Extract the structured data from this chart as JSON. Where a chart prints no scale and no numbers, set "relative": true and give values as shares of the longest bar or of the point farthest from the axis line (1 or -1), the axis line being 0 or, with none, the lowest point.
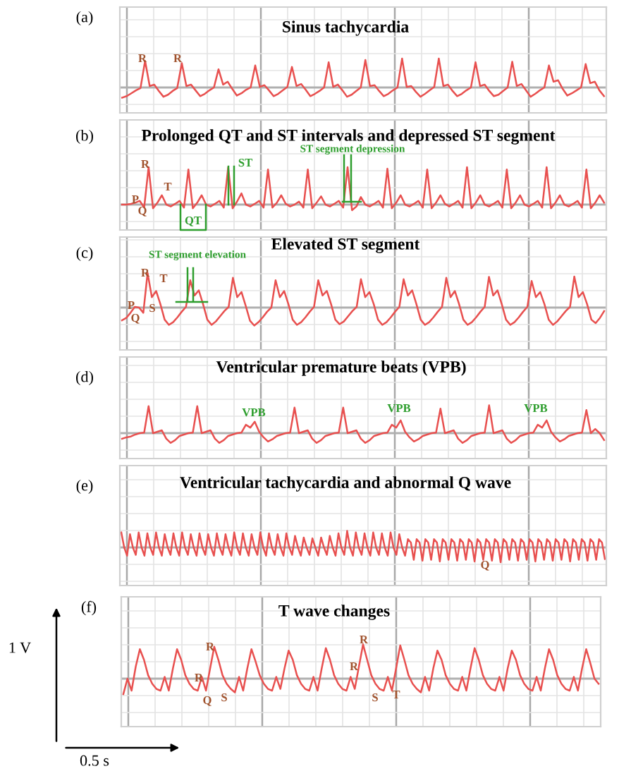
{
  "chart_data": [
    {
      "type": "line",
      "title": "Sinus tachycardia",
      "relative": true,
      "grid": true,
      "tick_labels": false,
      "annotations": [
        "(a)",
        "R",
        "R"
      ],
      "categories": [
        null,
        null,
        null,
        null,
        null,
        null,
        null,
        null,
        null,
        null,
        null,
        null,
        null,
        null,
        null,
        null,
        null,
        null,
        null,
        null,
        null,
        null,
        null,
        null,
        null,
        null,
        null,
        null,
        null,
        null,
        null,
        null,
        null,
        null,
        null,
        null,
        null,
        null,
        null,
        null,
        null,
        null,
        null,
        null,
        null,
        null,
        null,
        null,
        null,
        null,
        null,
        null,
        null,
        null,
        null,
        null,
        null,
        null,
        null,
        null,
        null,
        null,
        null,
        null,
        null,
        null,
        null,
        null,
        null,
        null,
        null,
        null,
        null,
        null,
        null,
        null,
        null,
        null,
        null,
        null,
        null,
        null,
        null,
        null,
        null,
        null,
        null,
        null,
        null,
        null,
        null,
        null,
        null,
        null,
        null,
        null,
        null,
        null,
        null,
        null,
        null,
        null,
        null,
        null,
        null,
        null
      ],
      "series": [
        {
          "color": "#e8504f",
          "values": [
            -0.35,
            -0.3,
            -0.2,
            -0.1,
            -0.02,
            0.92,
            0.05,
            0.1,
            -0.12,
            -0.32,
            -0.25,
            -0.12,
            -0.02,
            0.84,
            0.05,
            0.1,
            -0.1,
            -0.3,
            -0.22,
            -0.1,
            0.0,
            0.63,
            0.1,
            0.2,
            -0.05,
            -0.28,
            -0.2,
            -0.08,
            0.0,
            0.76,
            0.02,
            0.08,
            -0.1,
            -0.3,
            -0.22,
            -0.1,
            0.02,
            0.71,
            0.05,
            0.12,
            -0.08,
            -0.3,
            -0.22,
            -0.12,
            0.0,
            0.87,
            0.02,
            0.1,
            -0.1,
            -0.32,
            -0.25,
            -0.12,
            0.0,
            0.95,
            0.05,
            0.08,
            -0.12,
            -0.3,
            -0.22,
            -0.1,
            0.0,
            1.0,
            0.02,
            0.05,
            -0.15,
            -0.32,
            -0.22,
            -0.1,
            0.02,
            1.0,
            0.05,
            0.1,
            -0.12,
            -0.3,
            -0.22,
            -0.1,
            0.0,
            0.87,
            0.05,
            0.1,
            -0.12,
            -0.3,
            -0.25,
            -0.12,
            0.0,
            0.89,
            0.05,
            0.12,
            -0.1,
            -0.32,
            -0.22,
            -0.1,
            0.0,
            0.76,
            0.2,
            0.25,
            -0.05,
            -0.28,
            -0.2,
            -0.1,
            0.0,
            0.81,
            0.15,
            0.2,
            -0.1,
            -0.3
          ]
        }
      ]
    },
    {
      "type": "line",
      "title": "Prolonged QT and ST intervals and depressed ST segment",
      "relative": true,
      "grid": true,
      "tick_labels": false,
      "annotations": [
        "(b)",
        "R",
        "P",
        "Q",
        "T",
        "ST",
        "QT",
        "ST segment depression"
      ],
      "categories": [
        null,
        null,
        null,
        null,
        null,
        null,
        null,
        null,
        null,
        null,
        null,
        null,
        null,
        null,
        null,
        null,
        null,
        null,
        null,
        null,
        null,
        null,
        null,
        null,
        null,
        null,
        null,
        null,
        null,
        null,
        null,
        null,
        null,
        null,
        null,
        null,
        null,
        null,
        null,
        null,
        null,
        null,
        null,
        null,
        null,
        null,
        null,
        null,
        null,
        null,
        null,
        null,
        null,
        null,
        null,
        null,
        null,
        null,
        null,
        null,
        null,
        null,
        null,
        null,
        null,
        null,
        null,
        null,
        null,
        null,
        null,
        null,
        null,
        null,
        null,
        null,
        null,
        null,
        null,
        null,
        null,
        null,
        null,
        null,
        null,
        null,
        null,
        null,
        null,
        null,
        null,
        null,
        null,
        null,
        null,
        null,
        null,
        null,
        null,
        null,
        null,
        null,
        null,
        null,
        null,
        null,
        null,
        null,
        null,
        null
      ],
      "series": [
        {
          "color": "#e8504f",
          "values": [
            0.0,
            0.0,
            0.02,
            0.05,
            0.1,
            -0.08,
            1.0,
            -0.1,
            0.05,
            0.25,
            0.0,
            -0.05,
            0.02,
            0.1,
            -0.08,
            0.94,
            -0.1,
            0.05,
            0.25,
            0.0,
            -0.05,
            0.02,
            0.1,
            -0.08,
            1.0,
            -0.1,
            0.08,
            0.3,
            0.0,
            -0.05,
            0.02,
            0.1,
            -0.08,
            0.94,
            -0.08,
            0.05,
            0.25,
            0.02,
            -0.05,
            0.0,
            0.08,
            -0.08,
            0.94,
            -0.1,
            0.05,
            0.22,
            0.0,
            -0.05,
            0.02,
            0.1,
            -0.08,
            1.0,
            -0.15,
            -0.05,
            0.2,
            0.0,
            -0.05,
            0.02,
            0.1,
            -0.08,
            0.96,
            -0.1,
            0.05,
            0.25,
            0.0,
            -0.05,
            0.02,
            0.1,
            -0.08,
            0.94,
            -0.1,
            0.05,
            0.25,
            0.02,
            -0.05,
            0.02,
            0.1,
            -0.08,
            1.0,
            -0.1,
            0.05,
            0.25,
            0.0,
            -0.05,
            0.02,
            0.1,
            -0.08,
            0.94,
            -0.1,
            0.05,
            0.25,
            0.0,
            -0.05,
            0.02,
            0.1,
            -0.08,
            1.0,
            -0.1,
            0.05,
            0.25,
            0.0,
            -0.05,
            0.02,
            0.1,
            -0.08,
            0.94,
            -0.1,
            0.05,
            0.25,
            0.05
          ]
        }
      ]
    },
    {
      "type": "line",
      "title": "Elevated ST segment",
      "relative": true,
      "grid": true,
      "tick_labels": false,
      "annotations": [
        "(c)",
        "ST segment elevation",
        "R",
        "T",
        "P",
        "S",
        "Q"
      ],
      "categories": [
        null,
        null,
        null,
        null,
        null,
        null,
        null,
        null,
        null,
        null,
        null,
        null,
        null,
        null,
        null,
        null,
        null,
        null,
        null,
        null,
        null,
        null,
        null,
        null,
        null,
        null,
        null,
        null,
        null,
        null,
        null,
        null,
        null,
        null,
        null,
        null,
        null,
        null,
        null,
        null,
        null,
        null,
        null,
        null,
        null,
        null,
        null,
        null,
        null,
        null,
        null,
        null,
        null,
        null,
        null,
        null,
        null,
        null,
        null,
        null,
        null,
        null,
        null,
        null,
        null,
        null,
        null,
        null,
        null,
        null,
        null,
        null,
        null,
        null,
        null,
        null,
        null,
        null,
        null,
        null,
        null,
        null,
        null,
        null,
        null,
        null,
        null,
        null,
        null,
        null,
        null,
        null,
        null,
        null,
        null,
        null,
        null,
        null,
        null,
        null,
        null,
        null,
        null,
        null,
        null,
        null,
        null,
        null,
        null,
        null,
        null,
        null,
        null,
        null
      ],
      "series": [
        {
          "color": "#e8504f",
          "values": [
            -0.37,
            -0.3,
            -0.15,
            0.02,
            0.0,
            -0.15,
            1.0,
            0.3,
            0.48,
            0.1,
            -0.35,
            -0.5,
            -0.42,
            -0.28,
            -0.12,
            0.02,
            0.79,
            0.35,
            0.5,
            0.1,
            -0.35,
            -0.5,
            -0.4,
            -0.25,
            -0.1,
            0.02,
            0.86,
            0.3,
            0.45,
            0.05,
            -0.38,
            -0.52,
            -0.42,
            -0.28,
            -0.12,
            0.0,
            0.79,
            0.3,
            0.48,
            0.1,
            -0.35,
            -0.5,
            -0.42,
            -0.28,
            -0.12,
            0.02,
            0.79,
            0.35,
            0.48,
            0.1,
            -0.35,
            -0.48,
            -0.4,
            -0.25,
            -0.1,
            0.02,
            0.82,
            0.3,
            0.45,
            0.1,
            -0.35,
            -0.5,
            -0.42,
            -0.28,
            -0.12,
            0.02,
            0.82,
            0.35,
            0.5,
            0.1,
            -0.35,
            -0.5,
            -0.42,
            -0.28,
            -0.12,
            0.02,
            0.86,
            0.3,
            0.48,
            0.1,
            -0.35,
            -0.5,
            -0.42,
            -0.28,
            -0.12,
            0.02,
            0.89,
            0.35,
            0.5,
            0.1,
            -0.35,
            -0.5,
            -0.42,
            -0.28,
            -0.12,
            0.02,
            0.77,
            0.3,
            0.45,
            0.1,
            -0.35,
            -0.5,
            -0.4,
            -0.25,
            -0.1,
            0.02,
            0.9,
            0.3,
            0.45,
            0.1,
            -0.35,
            -0.45,
            -0.3,
            -0.1
          ]
        }
      ]
    },
    {
      "type": "line",
      "title": "Ventricular premature beats (VPB)",
      "relative": true,
      "grid": true,
      "tick_labels": false,
      "annotations": [
        "(d)",
        "VPB",
        "VPB",
        "VPB"
      ],
      "categories": [
        null,
        null,
        null,
        null,
        null,
        null,
        null,
        null,
        null,
        null,
        null,
        null,
        null,
        null,
        null,
        null,
        null,
        null,
        null,
        null,
        null,
        null,
        null,
        null,
        null,
        null,
        null,
        null,
        null,
        null,
        null,
        null,
        null,
        null,
        null,
        null,
        null,
        null,
        null,
        null,
        null,
        null,
        null,
        null,
        null,
        null,
        null,
        null,
        null,
        null,
        null,
        null,
        null,
        null,
        null,
        null,
        null,
        null,
        null,
        null,
        null,
        null,
        null,
        null,
        null,
        null,
        null,
        null,
        null,
        null,
        null,
        null,
        null,
        null,
        null,
        null,
        null,
        null,
        null,
        null,
        null,
        null,
        null,
        null,
        null,
        null,
        null,
        null,
        null,
        null,
        null,
        null,
        null,
        null,
        null,
        null,
        null,
        null,
        null,
        null,
        null,
        null,
        null,
        null,
        null,
        null,
        null,
        null,
        null,
        null
      ],
      "series": [
        {
          "color": "#e8504f",
          "values": [
            -0.2,
            -0.15,
            -0.12,
            -0.05,
            0.0,
            0.02,
            0.97,
            0.0,
            0.05,
            0.1,
            -0.2,
            -0.35,
            -0.25,
            -0.1,
            -0.05,
            0.0,
            0.02,
            0.97,
            0.0,
            0.05,
            0.1,
            -0.2,
            -0.35,
            -0.25,
            -0.1,
            -0.05,
            0.0,
            0.02,
            0.3,
            0.2,
            0.41,
            0.05,
            -0.15,
            -0.3,
            -0.22,
            -0.1,
            -0.05,
            0.0,
            0.02,
            0.92,
            0.0,
            0.05,
            0.1,
            -0.2,
            -0.35,
            -0.25,
            -0.1,
            -0.05,
            0.0,
            0.02,
            0.92,
            0.0,
            0.05,
            0.1,
            -0.2,
            -0.35,
            -0.25,
            -0.1,
            -0.05,
            0.0,
            0.02,
            0.3,
            0.2,
            0.46,
            0.05,
            -0.15,
            -0.3,
            -0.22,
            -0.1,
            -0.05,
            0.0,
            0.02,
            0.88,
            0.0,
            0.05,
            0.1,
            -0.2,
            -0.35,
            -0.25,
            -0.1,
            -0.05,
            0.0,
            0.02,
            1.0,
            0.0,
            0.05,
            0.1,
            -0.2,
            -0.35,
            -0.25,
            -0.1,
            -0.05,
            0.0,
            0.02,
            0.3,
            0.2,
            0.46,
            0.05,
            -0.15,
            -0.3,
            -0.22,
            -0.1,
            -0.05,
            0.0,
            0.02,
            0.83,
            0.0,
            0.15,
            0.0,
            -0.25
          ]
        }
      ]
    },
    {
      "type": "line",
      "title": "Ventricular tachycardia and abnormal Q wave",
      "relative": true,
      "grid": true,
      "tick_labels": false,
      "annotations": [
        "(e)",
        "Q"
      ],
      "categories": [
        null,
        null,
        null,
        null,
        null,
        null,
        null,
        null,
        null,
        null,
        null,
        null,
        null,
        null,
        null,
        null,
        null,
        null,
        null,
        null,
        null,
        null,
        null,
        null,
        null,
        null,
        null,
        null,
        null,
        null,
        null,
        null,
        null,
        null,
        null,
        null,
        null,
        null,
        null,
        null,
        null,
        null,
        null,
        null,
        null,
        null,
        null,
        null,
        null,
        null,
        null,
        null,
        null,
        null,
        null,
        null,
        null,
        null,
        null,
        null,
        null,
        null,
        null,
        null,
        null,
        null,
        null,
        null,
        null,
        null,
        null,
        null,
        null,
        null,
        null,
        null,
        null,
        null,
        null,
        null,
        null,
        null,
        null,
        null,
        null,
        null,
        null,
        null,
        null,
        null,
        null,
        null,
        null,
        null,
        null,
        null,
        null,
        null,
        null,
        null,
        null,
        null,
        null,
        null,
        null,
        null,
        null,
        null,
        null,
        null,
        null,
        null,
        null,
        null,
        null,
        null,
        null,
        null,
        null,
        null,
        null,
        null,
        null,
        null,
        null,
        null,
        null,
        null,
        null,
        null,
        null,
        null,
        null,
        null,
        null,
        null,
        null,
        null,
        null,
        null,
        null,
        null,
        null,
        null,
        null,
        null,
        null,
        null,
        null,
        null,
        null,
        null,
        null,
        null,
        null,
        null,
        null,
        null,
        null,
        null,
        null,
        null,
        null,
        null,
        null,
        null,
        null,
        null
      ],
      "series": [
        {
          "color": "#e8504f",
          "values": [
            0.91,
            0.0,
            -0.5,
            0.8,
            0.0,
            -0.45,
            0.91,
            0.0,
            -0.5,
            0.85,
            0.0,
            -0.45,
            0.91,
            0.0,
            -0.5,
            0.8,
            0.0,
            -0.45,
            0.85,
            0.0,
            -0.5,
            0.91,
            0.0,
            -0.45,
            0.8,
            0.0,
            -0.5,
            0.85,
            0.0,
            -0.45,
            0.8,
            0.0,
            -0.5,
            0.85,
            0.0,
            -0.45,
            0.8,
            0.0,
            -0.5,
            0.91,
            0.0,
            -0.45,
            0.85,
            0.0,
            -0.5,
            0.8,
            0.0,
            -0.45,
            0.91,
            0.0,
            -0.5,
            0.85,
            0.0,
            -0.45,
            0.8,
            0.0,
            -0.5,
            0.85,
            0.0,
            -0.45,
            0.7,
            0.0,
            -0.5,
            0.6,
            0.0,
            -0.45,
            0.55,
            0.0,
            -0.5,
            0.6,
            0.0,
            -0.45,
            0.7,
            0.0,
            -0.5,
            0.85,
            0.0,
            -0.45,
            1.0,
            0.0,
            -0.5,
            0.91,
            0.0,
            -0.45,
            0.85,
            0.0,
            -0.5,
            0.91,
            0.0,
            -0.45,
            0.85,
            0.0,
            -0.5,
            0.91,
            0.0,
            -0.45,
            0.8,
            0.0,
            -0.5,
            0.5,
            0.3,
            -0.75,
            0.5,
            0.3,
            -0.8,
            0.5,
            0.3,
            -0.75,
            0.5,
            0.3,
            -0.85,
            0.5,
            0.3,
            -0.75,
            0.5,
            0.3,
            -0.8,
            0.5,
            0.3,
            -0.75,
            0.5,
            0.3,
            -0.85,
            0.5,
            0.3,
            -0.75,
            0.5,
            0.3,
            -0.8,
            0.5,
            0.3,
            -0.9,
            0.5,
            0.3,
            -0.75,
            0.5,
            0.3,
            -0.8,
            0.5,
            0.3,
            -0.75,
            0.5,
            0.3,
            -0.85,
            0.5,
            0.3,
            -0.75,
            0.5,
            0.3,
            -0.8,
            0.5,
            0.3,
            -0.75,
            0.5,
            0.3,
            -0.85,
            0.5,
            0.3,
            -0.75,
            0.5,
            0.3,
            -0.8,
            0.5,
            0.3,
            -0.75,
            0.5,
            0.3,
            -0.7
          ]
        }
      ]
    },
    {
      "type": "line",
      "title": "T wave changes",
      "relative": true,
      "grid": true,
      "tick_labels": false,
      "annotations": [
        "(f)",
        "R",
        "R",
        "Q",
        "S",
        "R",
        "R",
        "S",
        "T",
        "1 V",
        "0.5 s"
      ],
      "categories": [
        null,
        null,
        null,
        null,
        null,
        null,
        null,
        null,
        null,
        null,
        null,
        null,
        null,
        null,
        null,
        null,
        null,
        null,
        null,
        null,
        null,
        null,
        null,
        null,
        null,
        null,
        null,
        null,
        null,
        null,
        null,
        null,
        null,
        null,
        null,
        null,
        null,
        null,
        null,
        null,
        null,
        null,
        null,
        null,
        null,
        null,
        null,
        null,
        null,
        null,
        null,
        null,
        null,
        null,
        null,
        null,
        null,
        null,
        null,
        null,
        null,
        null,
        null,
        null,
        null,
        null,
        null,
        null,
        null,
        null,
        null,
        null,
        null,
        null,
        null,
        null,
        null,
        null,
        null,
        null,
        null,
        null,
        null,
        null,
        null,
        null,
        null,
        null,
        null,
        null,
        null,
        null,
        null,
        null,
        null,
        null,
        null,
        null,
        null,
        null,
        null,
        null,
        null,
        null,
        null,
        null,
        null,
        null,
        null,
        null,
        null,
        null,
        null,
        null,
        null,
        null
      ],
      "series": [
        {
          "color": "#e8504f",
          "values": [
            -0.45,
            0.0,
            -0.35,
            0.35,
            0.86,
            0.55,
            0.1,
            -0.15,
            -0.3,
            -0.35,
            0.05,
            -0.35,
            0.3,
            0.86,
            0.55,
            0.1,
            -0.15,
            -0.3,
            -0.35,
            0.05,
            -0.35,
            0.3,
            0.93,
            0.55,
            0.1,
            -0.15,
            -0.3,
            -0.4,
            0.05,
            -0.35,
            0.3,
            0.86,
            0.5,
            0.1,
            -0.15,
            -0.3,
            -0.35,
            0.05,
            -0.3,
            0.3,
            0.82,
            0.55,
            0.1,
            -0.15,
            -0.3,
            -0.35,
            0.05,
            -0.35,
            0.3,
            0.89,
            0.55,
            0.1,
            -0.15,
            -0.3,
            -0.35,
            0.05,
            -0.3,
            0.35,
            1.0,
            0.55,
            0.1,
            -0.15,
            -0.3,
            -0.35,
            0.05,
            -0.35,
            0.3,
            0.97,
            0.55,
            0.1,
            -0.15,
            -0.3,
            -0.4,
            0.05,
            -0.35,
            0.3,
            0.82,
            0.55,
            0.1,
            -0.15,
            -0.3,
            -0.35,
            0.05,
            -0.35,
            0.3,
            0.89,
            0.55,
            0.1,
            -0.15,
            -0.3,
            -0.35,
            0.05,
            -0.35,
            0.3,
            0.82,
            0.55,
            0.1,
            -0.15,
            -0.3,
            -0.35,
            0.05,
            -0.35,
            0.3,
            0.86,
            0.55,
            0.1,
            -0.15,
            -0.3,
            -0.35,
            0.05,
            -0.35,
            0.3,
            0.86,
            0.45,
            0.0,
            -0.15
          ]
        }
      ]
    }
  ]
}
